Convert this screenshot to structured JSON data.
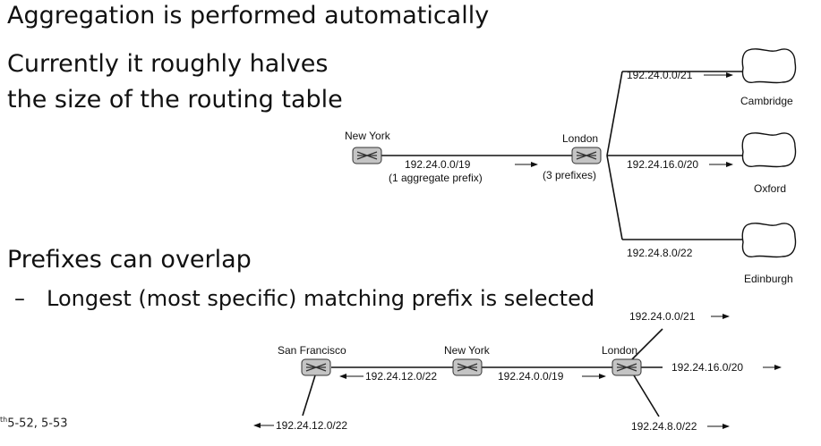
{
  "slide": {
    "line1": "Aggregation is performed automatically",
    "line2": "Currently it roughly halves",
    "line3": "the size of the routing table",
    "line4": "Prefixes can overlap",
    "sub_bullet_dash": "–",
    "sub_bullet": "Longest (most specific) matching prefix is selected",
    "footer_sup": "th",
    "footer": "5-52, 5-53"
  },
  "diagram1": {
    "router_left_label": "New York",
    "router_right_label": "London",
    "link_prefix": "192.24.0.0/19",
    "link_note": "(1 aggregate prefix)",
    "router_right_note": "(3 prefixes)",
    "branches": [
      {
        "prefix": "192.24.0.0/21",
        "site": "Cambridge"
      },
      {
        "prefix": "192.24.16.0/20",
        "site": "Oxford"
      },
      {
        "prefix": "192.24.8.0/22",
        "site": "Edinburgh"
      }
    ]
  },
  "diagram2": {
    "routers": [
      "San Francisco",
      "New York",
      "London"
    ],
    "link_sf_ny": "192.24.12.0/22",
    "link_ny_lon": "192.24.0.0/19",
    "sf_out": "192.24.12.0/22",
    "lon_out": [
      "192.24.0.0/21",
      "192.24.16.0/20",
      "192.24.8.0/22"
    ]
  }
}
